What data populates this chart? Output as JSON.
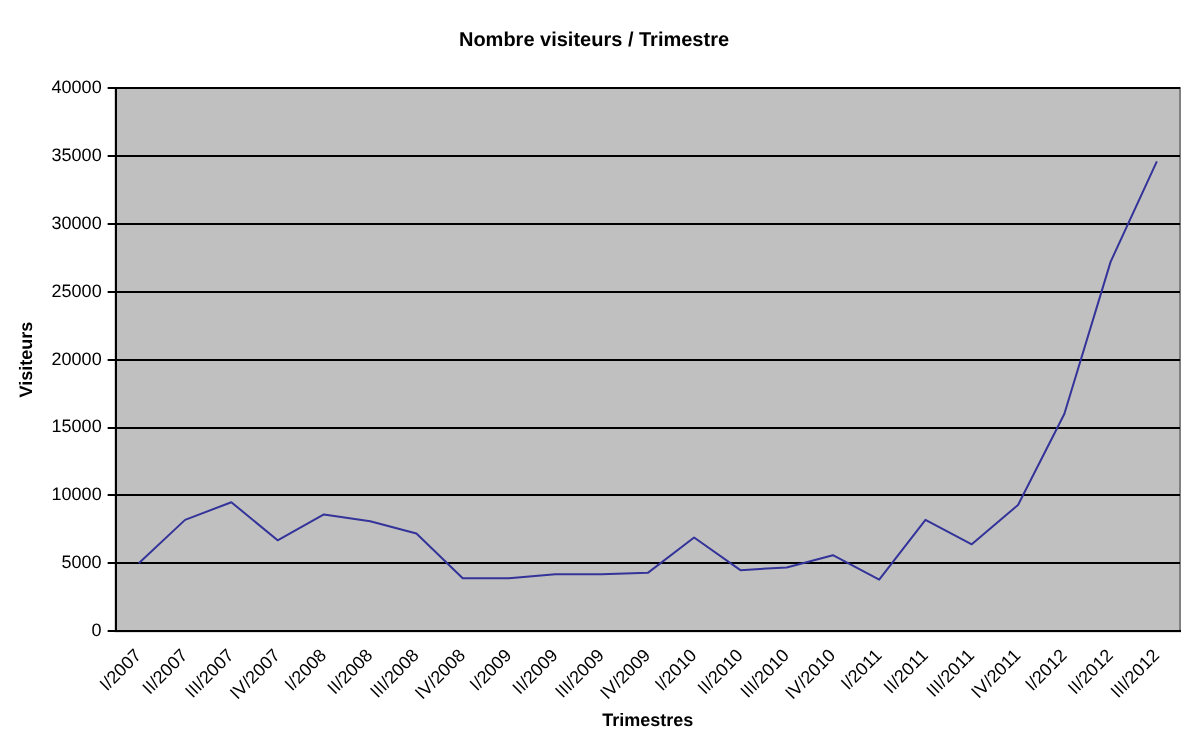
{
  "chart_data": {
    "type": "line",
    "title": "Nombre visiteurs / Trimestre",
    "xlabel": "Trimestres",
    "ylabel": "Visiteurs",
    "categories": [
      "I/2007",
      "II/2007",
      "III/2007",
      "IV/2007",
      "I/2008",
      "II/2008",
      "III/2008",
      "IV/2008",
      "I/2009",
      "II/2009",
      "III/2009",
      "IV/2009",
      "I/2010",
      "II/2010",
      "III/2010",
      "IV/2010",
      "I/2011",
      "II/2011",
      "III/2011",
      "IV/2011",
      "I/2012",
      "II/2012",
      "III/2012"
    ],
    "values": [
      5000,
      8200,
      9500,
      6700,
      8600,
      8100,
      7200,
      3900,
      3900,
      4200,
      4200,
      4300,
      6900,
      4500,
      4700,
      5600,
      3800,
      8200,
      6400,
      9300,
      16000,
      27200,
      34600
    ],
    "color": "#333399",
    "ylim": [
      0,
      40000
    ],
    "yticks": [
      0,
      5000,
      10000,
      15000,
      20000,
      25000,
      30000,
      35000,
      40000
    ],
    "grid": "y",
    "legend": false,
    "marker": "none",
    "line_style": "solid"
  }
}
